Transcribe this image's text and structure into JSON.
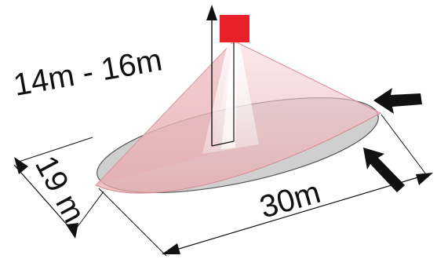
{
  "labels": {
    "height": "14m - 16m",
    "width": "19 m",
    "length": "30m"
  },
  "colors": {
    "sensor": "#e8202a",
    "cone_fill": "#f2c7c9",
    "cone_edge": "#d58d92",
    "ellipse_fill": "#cfcfcf",
    "ellipse_edge": "#555555",
    "ink": "#111111"
  },
  "icons": [
    "sensor-square",
    "arrow-up",
    "arrow-left",
    "arrow-right",
    "arrow-down"
  ]
}
